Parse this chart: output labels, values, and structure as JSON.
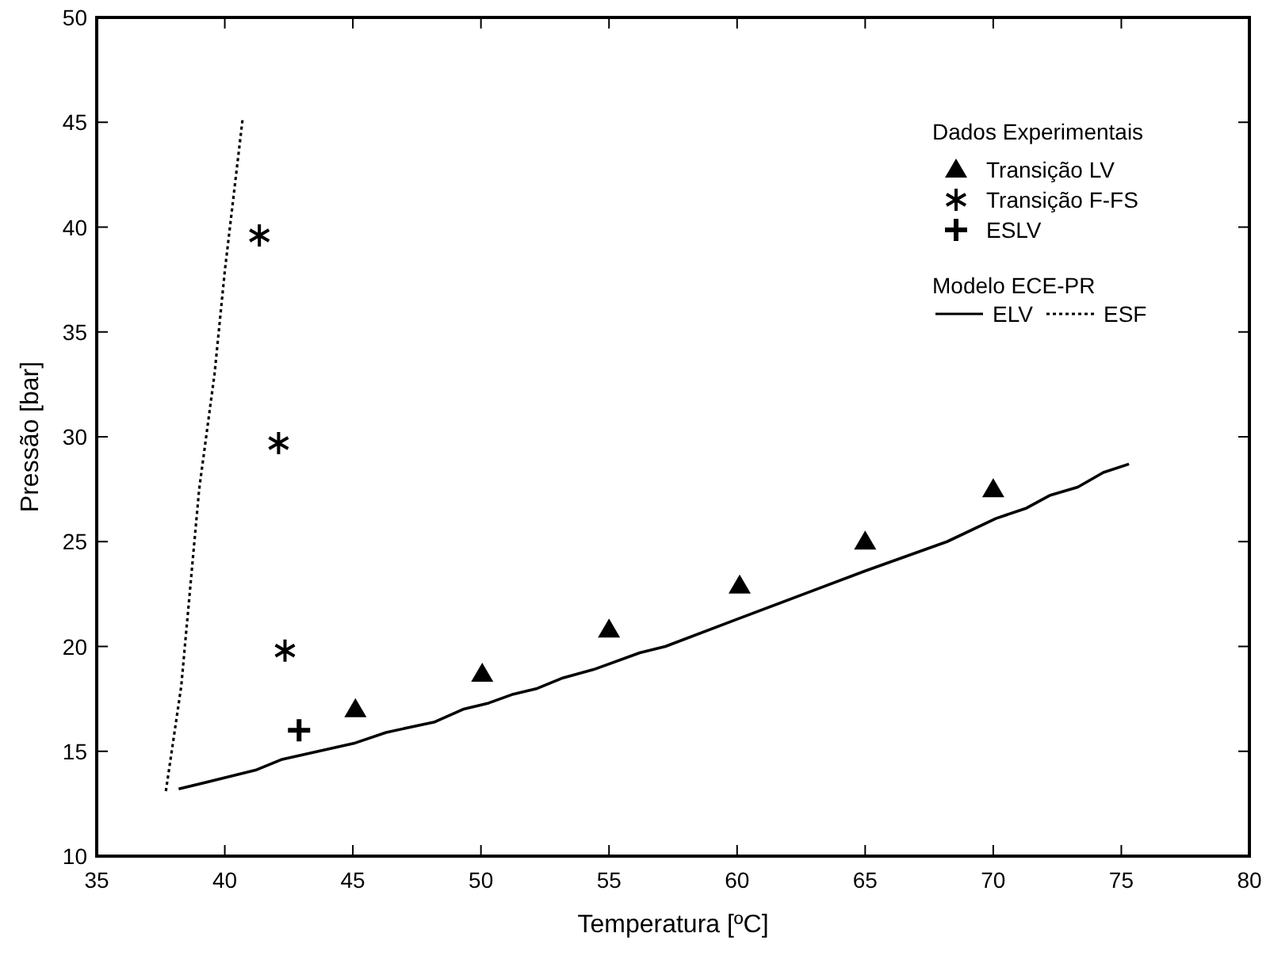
{
  "chart_data": {
    "type": "scatter",
    "xlabel": "Temperatura [ºC]",
    "ylabel": "Pressão [bar]",
    "legend_title": "Dados Experimentais",
    "legend": "top right",
    "grid": false,
    "xlim": [
      35,
      80
    ],
    "xticks": [
      35,
      40,
      45,
      50,
      55,
      60,
      65,
      70,
      75,
      80
    ],
    "ylim": [
      10,
      50
    ],
    "yticks": [
      10,
      15,
      20,
      25,
      30,
      35,
      40,
      45,
      50
    ],
    "annotations": [
      "Modelo ECE-PR"
    ],
    "series": [
      {
        "name": "Transição LV",
        "marker": "triangle",
        "color": "#000000",
        "x": [
          45.1,
          50.05,
          55.0,
          60.1,
          65.0,
          70.0
        ],
        "values": [
          17.0,
          18.7,
          20.8,
          22.9,
          25.0,
          27.5
        ]
      },
      {
        "name": "Transição F-FS",
        "color": "#000000",
        "x": [
          41.35,
          42.1,
          42.35
        ],
        "values": [
          39.6,
          29.7,
          19.8
        ]
      },
      {
        "name": "ESLV",
        "marker": "cross",
        "color": "#000000",
        "x": [
          42.9
        ],
        "values": [
          16.0
        ]
      },
      {
        "name": "ELV",
        "type": "line",
        "line_style": "solid",
        "color": "#000000",
        "x": [
          38.2,
          41.2,
          42.2,
          45.1,
          46.3,
          48.2,
          49.3,
          50.3,
          51.2,
          52.2,
          53.2,
          54.4,
          56.2,
          57.2,
          60.0,
          65.0,
          68.2,
          70.1,
          71.3,
          72.2,
          73.3,
          74.3,
          75.3
        ],
        "values": [
          13.2,
          14.1,
          14.6,
          15.4,
          15.9,
          16.4,
          17.0,
          17.3,
          17.7,
          18.0,
          18.5,
          18.9,
          19.7,
          20.0,
          21.3,
          23.6,
          25.0,
          26.1,
          26.6,
          27.2,
          27.6,
          28.3,
          28.7
        ]
      },
      {
        "name": "ESF",
        "type": "line",
        "line_style": "dotted",
        "color": "#000000",
        "x": [
          37.7,
          38.3,
          39.0,
          39.6,
          40.0,
          40.7
        ],
        "values": [
          13.1,
          18.1,
          27.5,
          33.0,
          37.9,
          45.2
        ]
      }
    ]
  }
}
